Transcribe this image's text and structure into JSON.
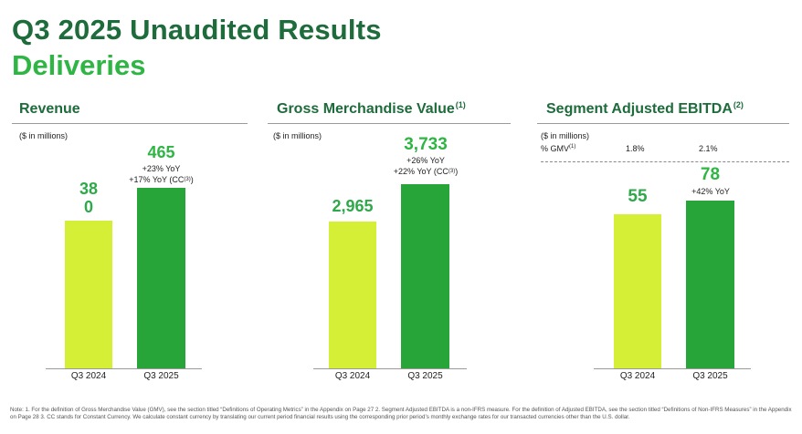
{
  "header": {
    "title": "Q3 2025 Unaudited Results",
    "subtitle": "Deliveries"
  },
  "panels": [
    {
      "title": "Revenue",
      "title_sup": "",
      "units": "($ in millions)",
      "value_labels": [
        "38\n0",
        "465"
      ],
      "growth_lines": [
        "+23% YoY",
        "+17% YoY (CC",
        "(3)",
        ")"
      ]
    },
    {
      "title": "Gross Merchandise Value",
      "title_sup": "(1)",
      "units": "($ in millions)",
      "value_labels": [
        "2,965",
        "3,733"
      ],
      "growth_lines": [
        "+26% YoY",
        "+22% YoY (CC",
        "(3)",
        ")"
      ]
    },
    {
      "title": "Segment Adjusted EBITDA",
      "title_sup": "(2)",
      "units": "($ in millions)",
      "pct_gmv_label": "% GMV",
      "pct_gmv_sup": "(1)",
      "pct_gmv_values": [
        "1.8%",
        "2.1%"
      ],
      "value_labels": [
        "55",
        "78"
      ],
      "growth_lines": [
        "+42% YoY"
      ]
    }
  ],
  "chart_data": [
    {
      "type": "bar",
      "title": "Revenue",
      "categories": [
        "Q3 2024",
        "Q3 2025"
      ],
      "values": [
        380,
        465
      ],
      "ylabel": "($ in millions)",
      "annotations": [
        "+23% YoY",
        "+17% YoY (CC(3))"
      ],
      "colors": [
        "#d4ef35",
        "#28a539"
      ]
    },
    {
      "type": "bar",
      "title": "Gross Merchandise Value(1)",
      "categories": [
        "Q3 2024",
        "Q3 2025"
      ],
      "values": [
        2965,
        3733
      ],
      "ylabel": "($ in millions)",
      "annotations": [
        "+26% YoY",
        "+22% YoY (CC(3))"
      ],
      "colors": [
        "#d4ef35",
        "#28a539"
      ]
    },
    {
      "type": "bar",
      "title": "Segment Adjusted EBITDA(2)",
      "categories": [
        "Q3 2024",
        "Q3 2025"
      ],
      "values": [
        55,
        78
      ],
      "ylabel": "($ in millions)",
      "percent_of_gmv": [
        "1.8%",
        "2.1%"
      ],
      "annotations": [
        "+42% YoY"
      ],
      "colors": [
        "#d4ef35",
        "#28a539"
      ]
    }
  ],
  "footnote": "Note: 1. For the definition of Gross Merchandise Value (GMV), see the section titled “Definitions of Operating Metrics” in the Appendix on Page 27 2. Segment Adjusted EBITDA is a non-IFRS measure. For the definition of Adjusted EBITDA, see the section titled “Definitions of Non-IFRS Measures” in the Appendix on Page 28 3. CC stands for Constant Currency. We calculate constant currency by translating our current period financial results using the corresponding prior period’s monthly exchange rates for our transacted currencies other than the U.S. dollar."
}
